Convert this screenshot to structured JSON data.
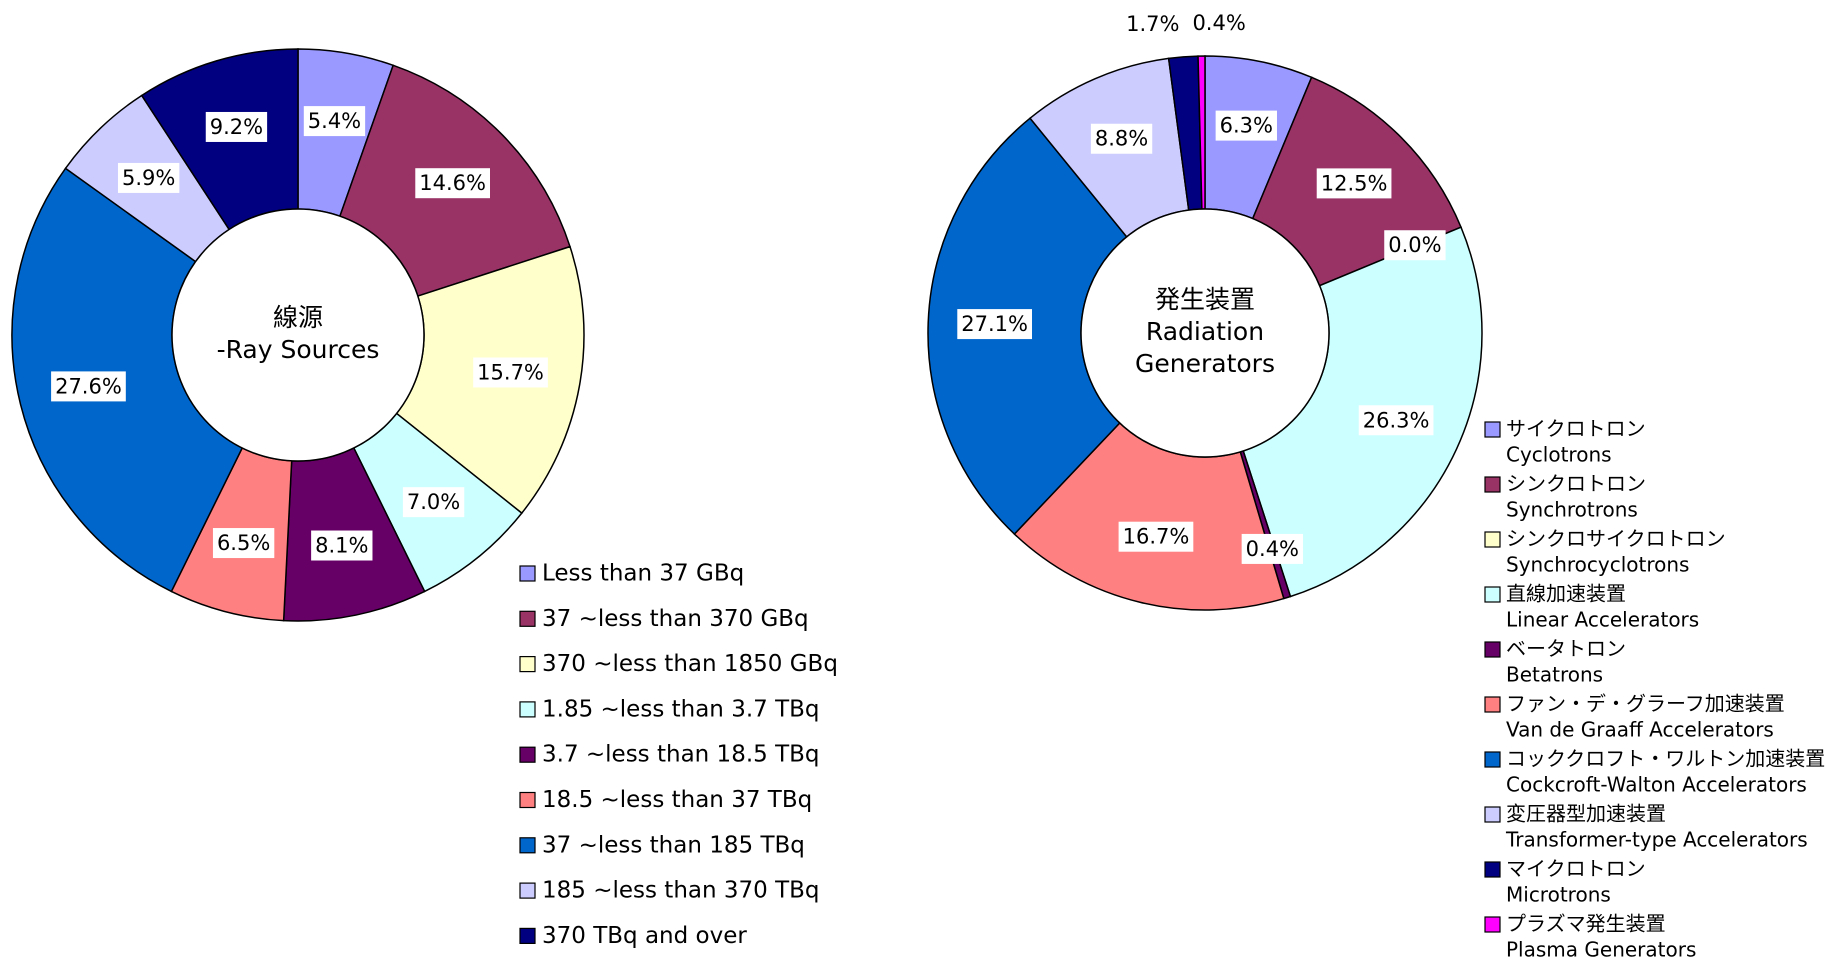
{
  "chart_data": [
    {
      "type": "donut",
      "center_text": [
        "線源",
        "-Ray Sources"
      ],
      "categories": [
        "Less than 37 GBq",
        "37 ~less than 370 GBq",
        "370 ~less than 1850 GBq",
        "1.85 ~less than 3.7 TBq",
        "3.7 ~less than 18.5 TBq",
        "18.5 ~less than 37 TBq",
        "37 ~less than 185 TBq",
        "185 ~less than 370 TBq",
        "370 TBq and over"
      ],
      "values": [
        5.4,
        14.6,
        15.7,
        7.0,
        8.1,
        6.5,
        27.6,
        5.9,
        9.2
      ],
      "value_labels": [
        "5.4%",
        "14.6%",
        "15.7%",
        "7.0%",
        "8.1%",
        "6.5%",
        "27.6%",
        "5.9%",
        "9.2%"
      ],
      "colors": [
        "#9999ff",
        "#993366",
        "#ffffcc",
        "#ccffff",
        "#660066",
        "#ff8080",
        "#0066cc",
        "#ccccff",
        "#000080"
      ]
    },
    {
      "type": "donut",
      "center_text": [
        "発生装置",
        "Radiation",
        "Generators"
      ],
      "categories": [
        {
          "ja": "サイクロトロン",
          "en": "Cyclotrons"
        },
        {
          "ja": "シンクロトロン",
          "en": "Synchrotrons"
        },
        {
          "ja": "シンクロサイクロトロン",
          "en": "Synchrocyclotrons"
        },
        {
          "ja": "直線加速装置",
          "en": "Linear Accelerators"
        },
        {
          "ja": "ベータトロン",
          "en": "Betatrons"
        },
        {
          "ja": "ファン・デ・グラーフ加速装置",
          "en": "Van de Graaff Accelerators"
        },
        {
          "ja": "コッククロフト・ワルトン加速装置",
          "en": "Cockcroft-Walton Accelerators"
        },
        {
          "ja": "変圧器型加速装置",
          "en": "Transformer-type Accelerators"
        },
        {
          "ja": "マイクロトロン",
          "en": "Microtrons"
        },
        {
          "ja": "プラズマ発生装置",
          "en": "Plasma Generators"
        }
      ],
      "values": [
        6.3,
        12.5,
        0.0,
        26.3,
        0.4,
        16.7,
        27.1,
        8.8,
        1.7,
        0.4
      ],
      "value_labels": [
        "6.3%",
        "12.5%",
        "0.0%",
        "26.3%",
        "0.4%",
        "16.7%",
        "27.1%",
        "8.8%",
        "1.7%",
        "0.4%"
      ],
      "colors": [
        "#9999ff",
        "#993366",
        "#ffffcc",
        "#ccffff",
        "#660066",
        "#ff8080",
        "#0066cc",
        "#ccccff",
        "#000080",
        "#ff00ff"
      ]
    }
  ]
}
